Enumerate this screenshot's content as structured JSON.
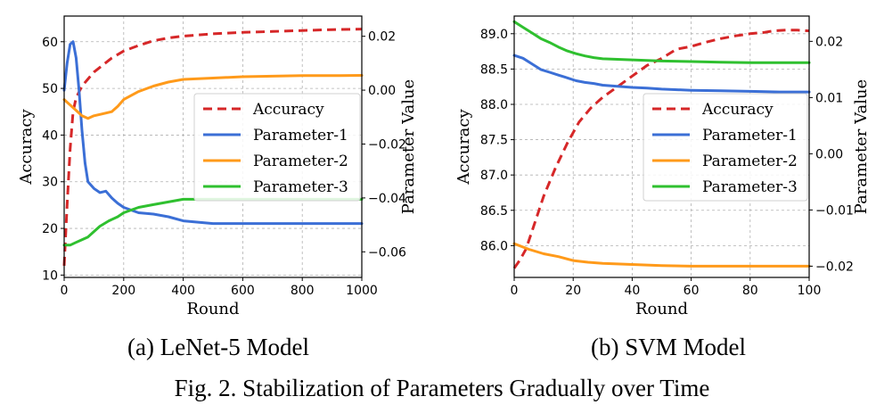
{
  "figure": {
    "caption": "Fig. 2.  Stabilization of Parameters Gradually over Time"
  },
  "colors": {
    "accuracy": "#d62728",
    "parameter_1": "#3b6fd6",
    "parameter_2": "#ff9a1a",
    "parameter_3": "#2fc02f"
  },
  "chart_data": [
    {
      "type": "line",
      "subcaption": "(a) LeNet-5 Model",
      "xlabel": "Round",
      "ylabel_left": "Accuracy",
      "ylabel_right": "Parameter Value",
      "xlim": [
        0,
        1000
      ],
      "ylim_left": [
        9.5,
        65.5
      ],
      "ylim_right": [
        -0.0695,
        0.0275
      ],
      "xticks": [
        0,
        200,
        400,
        600,
        800,
        1000
      ],
      "yticks_left": [
        10,
        20,
        30,
        40,
        50,
        60
      ],
      "yticks_right": [
        -0.06,
        -0.04,
        -0.02,
        0.0,
        0.02
      ],
      "ytick_labels_right": [
        "−0.06",
        "−0.04",
        "−0.02",
        "0.00",
        "0.02"
      ],
      "grid": true,
      "legend_position": "center-right",
      "series": [
        {
          "name": "Accuracy",
          "axis": "left",
          "style": "dashed",
          "color_key": "accuracy",
          "x": [
            0,
            10,
            20,
            30,
            40,
            60,
            80,
            100,
            130,
            160,
            200,
            250,
            300,
            350,
            400,
            500,
            600,
            700,
            800,
            900,
            1000
          ],
          "y": [
            12,
            25,
            37,
            45,
            48,
            50.5,
            52,
            53.5,
            55,
            56.5,
            58,
            59.2,
            60.2,
            60.8,
            61.2,
            61.7,
            62,
            62.2,
            62.4,
            62.6,
            62.7
          ]
        },
        {
          "name": "Parameter-1",
          "axis": "right",
          "style": "solid",
          "color_key": "parameter_1",
          "x": [
            0,
            10,
            20,
            30,
            40,
            50,
            60,
            70,
            80,
            100,
            120,
            140,
            160,
            180,
            200,
            250,
            300,
            350,
            400,
            500,
            600,
            700,
            800,
            900,
            1000
          ],
          "y": [
            0.0,
            0.01,
            0.017,
            0.018,
            0.012,
            0.0,
            -0.015,
            -0.027,
            -0.034,
            -0.0365,
            -0.038,
            -0.0375,
            -0.04,
            -0.042,
            -0.0435,
            -0.0455,
            -0.046,
            -0.047,
            -0.0485,
            -0.0495,
            -0.0495,
            -0.0495,
            -0.0495,
            -0.0495,
            -0.0495
          ]
        },
        {
          "name": "Parameter-2",
          "axis": "right",
          "style": "solid",
          "color_key": "parameter_2",
          "x": [
            0,
            20,
            40,
            60,
            80,
            100,
            120,
            160,
            180,
            200,
            250,
            300,
            350,
            400,
            500,
            600,
            700,
            800,
            900,
            1000
          ],
          "y": [
            -0.0035,
            -0.0055,
            -0.0075,
            -0.0095,
            -0.0105,
            -0.0095,
            -0.009,
            -0.008,
            -0.006,
            -0.0035,
            -0.0005,
            0.0015,
            0.003,
            0.004,
            0.0045,
            0.005,
            0.0052,
            0.0054,
            0.0054,
            0.0055
          ]
        },
        {
          "name": "Parameter-3",
          "axis": "right",
          "style": "solid",
          "color_key": "parameter_3",
          "x": [
            0,
            20,
            40,
            60,
            80,
            100,
            120,
            150,
            180,
            200,
            250,
            300,
            350,
            400,
            500,
            600,
            700,
            800,
            900,
            1000
          ],
          "y": [
            -0.0575,
            -0.0575,
            -0.0565,
            -0.0555,
            -0.0545,
            -0.0525,
            -0.0505,
            -0.0485,
            -0.047,
            -0.0455,
            -0.0435,
            -0.0425,
            -0.0415,
            -0.0405,
            -0.0405,
            -0.0405,
            -0.0405,
            -0.0405,
            -0.0405,
            -0.0405
          ]
        }
      ]
    },
    {
      "type": "line",
      "subcaption": "(b) SVM Model",
      "xlabel": "Round",
      "ylabel_left": "Accuracy",
      "ylabel_right": "Parameter Value",
      "xlim": [
        0,
        100
      ],
      "ylim_left": [
        85.55,
        89.25
      ],
      "ylim_right": [
        -0.022,
        0.0245
      ],
      "xticks": [
        0,
        20,
        40,
        60,
        80,
        100
      ],
      "yticks_left": [
        86.0,
        86.5,
        87.0,
        87.5,
        88.0,
        88.5,
        89.0
      ],
      "ytick_labels_left": [
        "86.0",
        "86.5",
        "87.0",
        "87.5",
        "88.0",
        "88.5",
        "89.0"
      ],
      "yticks_right": [
        -0.02,
        -0.01,
        0.0,
        0.01,
        0.02
      ],
      "ytick_labels_right": [
        "−0.02",
        "−0.01",
        "0.00",
        "0.01",
        "0.02"
      ],
      "grid": true,
      "legend_position": "center-right",
      "series": [
        {
          "name": "Accuracy",
          "axis": "left",
          "style": "dashed",
          "color_key": "accuracy",
          "x": [
            0,
            2,
            4,
            6,
            8,
            10,
            14,
            18,
            22,
            26,
            30,
            35,
            40,
            45,
            50,
            55,
            60,
            65,
            70,
            75,
            80,
            85,
            88,
            92,
            96,
            100
          ],
          "y": [
            85.68,
            85.8,
            85.95,
            86.2,
            86.45,
            86.7,
            87.1,
            87.45,
            87.75,
            87.95,
            88.1,
            88.25,
            88.4,
            88.55,
            88.65,
            88.78,
            88.82,
            88.88,
            88.93,
            88.97,
            89.0,
            89.02,
            89.04,
            89.05,
            89.05,
            89.04
          ]
        },
        {
          "name": "Parameter-1",
          "axis": "right",
          "style": "solid",
          "color_key": "parameter_1",
          "x": [
            0,
            3,
            6,
            9,
            12,
            15,
            18,
            21,
            24,
            27,
            30,
            35,
            40,
            45,
            50,
            60,
            70,
            80,
            90,
            100
          ],
          "y": [
            0.0175,
            0.017,
            0.016,
            0.015,
            0.0145,
            0.014,
            0.0135,
            0.013,
            0.0127,
            0.0125,
            0.0122,
            0.012,
            0.0118,
            0.0117,
            0.0115,
            0.0113,
            0.0112,
            0.0111,
            0.011,
            0.011
          ]
        },
        {
          "name": "Parameter-2",
          "axis": "right",
          "style": "solid",
          "color_key": "parameter_2",
          "x": [
            0,
            5,
            10,
            15,
            20,
            25,
            30,
            35,
            40,
            50,
            60,
            70,
            80,
            90,
            100
          ],
          "y": [
            -0.016,
            -0.017,
            -0.0178,
            -0.0183,
            -0.019,
            -0.0193,
            -0.0195,
            -0.0196,
            -0.0197,
            -0.0199,
            -0.02,
            -0.02,
            -0.02,
            -0.02,
            -0.02
          ]
        },
        {
          "name": "Parameter-3",
          "axis": "right",
          "style": "solid",
          "color_key": "parameter_3",
          "x": [
            0,
            3,
            6,
            9,
            12,
            15,
            18,
            21,
            24,
            27,
            30,
            35,
            40,
            45,
            50,
            60,
            70,
            80,
            90,
            100
          ],
          "y": [
            0.0235,
            0.0225,
            0.0215,
            0.0205,
            0.0198,
            0.019,
            0.0183,
            0.0178,
            0.0174,
            0.0171,
            0.0169,
            0.0168,
            0.0167,
            0.0166,
            0.0165,
            0.0164,
            0.0163,
            0.0162,
            0.0162,
            0.0162
          ]
        }
      ]
    }
  ]
}
